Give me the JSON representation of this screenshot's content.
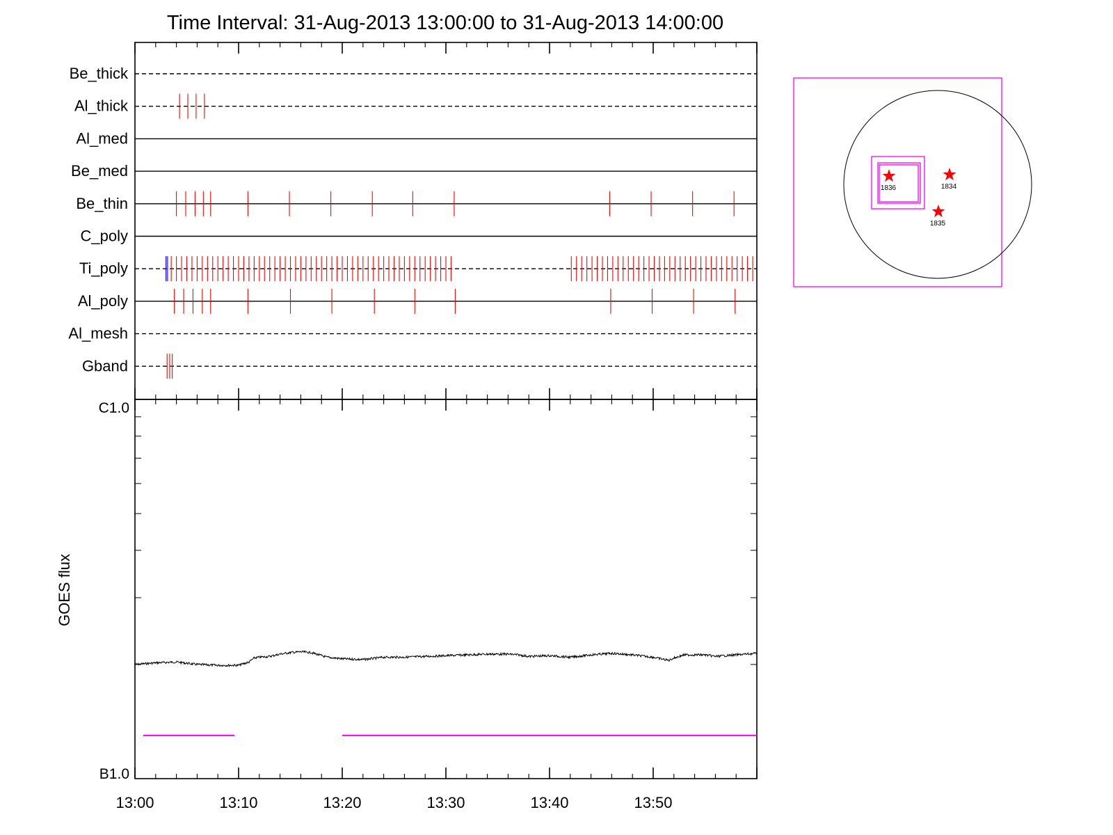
{
  "chart_data": {
    "type": "line",
    "title": "Time Interval: 31-Aug-2013 13:00:00 to 31-Aug-2013 14:00:00",
    "ylabel": "GOES flux",
    "x_tick_labels": [
      "13:00",
      "13:10",
      "13:20",
      "13:30",
      "13:40",
      "13:50"
    ],
    "x_range_minutes": [
      0,
      60
    ],
    "y_tick_labels": [
      "C1.0",
      "B1.0"
    ],
    "y_scale": "log",
    "ylim": [
      1e-07,
      1e-06
    ],
    "filters": [
      {
        "name": "Be_thick",
        "line": "dashed",
        "marks": []
      },
      {
        "name": "Al_thick",
        "line": "dashed",
        "marks": [
          4.3,
          5.1,
          5.9,
          6.7
        ]
      },
      {
        "name": "Al_med",
        "line": "solid",
        "marks": []
      },
      {
        "name": "Be_med",
        "line": "solid",
        "marks": []
      },
      {
        "name": "Be_thin",
        "line": "solid",
        "marks": [
          4.0,
          4.9,
          5.8,
          6.6,
          7.3,
          10.9,
          14.9,
          18.9,
          22.9,
          26.8,
          30.8,
          45.8,
          49.8,
          53.8,
          57.8
        ]
      },
      {
        "name": "C_poly",
        "line": "solid",
        "marks": []
      },
      {
        "name": "Ti_poly",
        "line": "dashed",
        "marks": [],
        "dense_segments": [
          [
            3.0,
            30.8
          ],
          [
            42.1,
            59.7
          ]
        ],
        "dense_step": 0.5,
        "blue_marks": [
          3.0,
          3.15
        ]
      },
      {
        "name": "Al_poly",
        "line": "solid",
        "marks": [
          3.8,
          4.7,
          5.6,
          6.5,
          7.3,
          10.9,
          15.0,
          19.0,
          23.1,
          27.0,
          30.9,
          45.9,
          49.9,
          53.9,
          57.9
        ]
      },
      {
        "name": "Al_mesh",
        "line": "dashed",
        "marks": []
      },
      {
        "name": "Gband",
        "line": "dashed",
        "marks": [
          3.1,
          3.35,
          3.6
        ]
      }
    ],
    "series": [
      {
        "color": "#000000",
        "x_minutes": [
          0,
          2,
          4,
          6,
          8,
          10,
          11,
          11.5,
          12,
          13,
          14,
          15,
          16,
          17,
          18,
          18.5,
          20,
          22,
          24,
          26,
          28,
          30,
          32,
          34,
          36,
          37,
          38,
          40,
          42,
          44,
          46,
          48,
          50,
          51.5,
          52,
          53,
          55,
          56,
          58,
          60
        ],
        "y_flux": [
          2e-07,
          2.02e-07,
          2.03e-07,
          2e-07,
          1.99e-07,
          1.99e-07,
          2.03e-07,
          2.08e-07,
          2.09e-07,
          2.1e-07,
          2.13e-07,
          2.15e-07,
          2.16e-07,
          2.15e-07,
          2.11e-07,
          2.09e-07,
          2.07e-07,
          2.06e-07,
          2.09e-07,
          2.09e-07,
          2.1e-07,
          2.11e-07,
          2.12e-07,
          2.13e-07,
          2.13e-07,
          2.12e-07,
          2.1e-07,
          2.11e-07,
          2.09e-07,
          2.12e-07,
          2.14e-07,
          2.12e-07,
          2.09e-07,
          2.05e-07,
          2.08e-07,
          2.12e-07,
          2.12e-07,
          2.1e-07,
          2.12e-07,
          2.14e-07
        ]
      }
    ],
    "coverage_bars": {
      "color": "#ff00ff",
      "segments": [
        [
          0.8,
          9.6
        ],
        [
          20.0,
          60.0
        ]
      ],
      "y_flux": 1.3e-07
    },
    "mark_color": "#ff0000",
    "blue_mark_color": "#0000ff"
  },
  "sun_map": {
    "box_color": "#ff00ff",
    "star_color": "#ff0000",
    "regions": [
      {
        "label": "1836"
      },
      {
        "label": "1834"
      },
      {
        "label": "1835"
      }
    ]
  }
}
